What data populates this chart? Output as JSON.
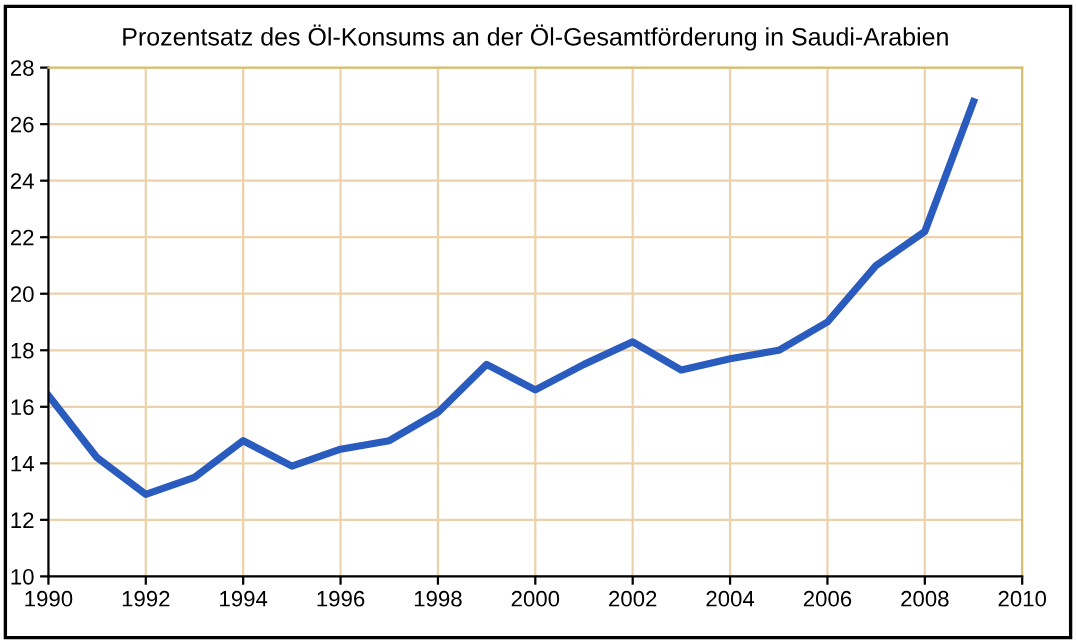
{
  "chart_data": {
    "type": "line",
    "title": "Prozentsatz des Öl-Konsums an der Öl-Gesamtförderung in Saudi-Arabien",
    "x": [
      1990,
      1991,
      1992,
      1993,
      1994,
      1995,
      1996,
      1997,
      1998,
      1999,
      2000,
      2001,
      2002,
      2003,
      2004,
      2005,
      2006,
      2007,
      2008,
      2009
    ],
    "series": [
      {
        "color": "#2a5cbf",
        "values": [
          16.4,
          14.2,
          12.9,
          13.5,
          14.8,
          13.9,
          14.5,
          14.8,
          15.8,
          17.5,
          16.6,
          17.5,
          18.3,
          17.3,
          17.7,
          18.0,
          19.0,
          21.0,
          22.2,
          26.8
        ]
      }
    ],
    "xlim": [
      1990,
      2010
    ],
    "xticks": [
      1990,
      1992,
      1994,
      1996,
      1998,
      2000,
      2002,
      2004,
      2006,
      2008,
      2010
    ],
    "ylim": [
      10,
      28
    ],
    "yticks": [
      10,
      12,
      14,
      16,
      18,
      20,
      22,
      24,
      26,
      28
    ],
    "grid": true,
    "marker": "none",
    "line_style": "solid"
  }
}
